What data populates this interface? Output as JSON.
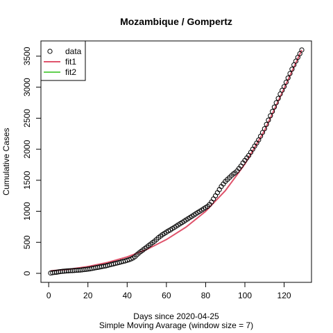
{
  "chart_data": {
    "type": "scatter",
    "title": "Mozambique / Gompertz",
    "xlabel": "Days since 2020-04-25",
    "ylabel": "Cumulative Cases",
    "subtitle": "Simple Moving Avarage (window size = 7)",
    "xlim": [
      1,
      129
    ],
    "ylim": [
      0,
      3600
    ],
    "x_ticks": [
      0,
      20,
      40,
      60,
      80,
      100,
      120
    ],
    "y_ticks": [
      0,
      500,
      1000,
      1500,
      2000,
      2500,
      3000,
      3500
    ],
    "legend": {
      "placement": "top-left",
      "entries": [
        {
          "label": "data",
          "symbol": "circle",
          "color": "#000000"
        },
        {
          "label": "fit1",
          "symbol": "line",
          "color": "#DF536B"
        },
        {
          "label": "fit2",
          "symbol": "line",
          "color": "#61D04F"
        }
      ]
    },
    "series": [
      {
        "name": "data",
        "kind": "points",
        "color": "#000000",
        "x": [
          1,
          2,
          3,
          4,
          5,
          6,
          7,
          8,
          9,
          10,
          11,
          12,
          13,
          14,
          15,
          16,
          17,
          18,
          19,
          20,
          21,
          22,
          23,
          24,
          25,
          26,
          27,
          28,
          29,
          30,
          31,
          32,
          33,
          34,
          35,
          36,
          37,
          38,
          39,
          40,
          41,
          42,
          43,
          44,
          45,
          46,
          47,
          48,
          49,
          50,
          51,
          52,
          53,
          54,
          55,
          56,
          57,
          58,
          59,
          60,
          61,
          62,
          63,
          64,
          65,
          66,
          67,
          68,
          69,
          70,
          71,
          72,
          73,
          74,
          75,
          76,
          77,
          78,
          79,
          80,
          81,
          82,
          83,
          84,
          85,
          86,
          87,
          88,
          89,
          90,
          91,
          92,
          93,
          94,
          95,
          96,
          97,
          98,
          99,
          100,
          101,
          102,
          103,
          104,
          105,
          106,
          107,
          108,
          109,
          110,
          111,
          112,
          113,
          114,
          115,
          116,
          117,
          118,
          119,
          120,
          121,
          122,
          123,
          124,
          125,
          126,
          127,
          128,
          129
        ],
        "y": [
          5,
          10,
          14,
          18,
          24,
          28,
          32,
          35,
          38,
          40,
          42,
          44,
          46,
          48,
          50,
          53,
          56,
          60,
          64,
          68,
          72,
          78,
          84,
          90,
          96,
          102,
          108,
          114,
          120,
          128,
          136,
          144,
          152,
          160,
          168,
          176,
          184,
          192,
          200,
          210,
          220,
          232,
          248,
          268,
          300,
          328,
          352,
          376,
          400,
          424,
          448,
          472,
          496,
          520,
          548,
          576,
          600,
          624,
          644,
          664,
          684,
          700,
          720,
          740,
          760,
          780,
          800,
          820,
          840,
          860,
          880,
          900,
          920,
          940,
          960,
          980,
          1000,
          1020,
          1040,
          1060,
          1080,
          1110,
          1150,
          1200,
          1250,
          1300,
          1350,
          1400,
          1440,
          1480,
          1510,
          1540,
          1570,
          1600,
          1620,
          1650,
          1690,
          1730,
          1780,
          1820,
          1860,
          1900,
          1950,
          2000,
          2050,
          2100,
          2150,
          2210,
          2270,
          2330,
          2400,
          2470,
          2540,
          2610,
          2680,
          2750,
          2820,
          2890,
          2950,
          3010,
          3080,
          3150,
          3220,
          3290,
          3360,
          3420,
          3480,
          3540,
          3600
        ]
      },
      {
        "name": "fit1",
        "kind": "line",
        "color": "#DF536B",
        "x": [
          1,
          10,
          20,
          30,
          40,
          50,
          60,
          70,
          80,
          90,
          100,
          110,
          120,
          129
        ],
        "y": [
          40,
          65,
          110,
          175,
          265,
          385,
          545,
          745,
          1000,
          1330,
          1760,
          2300,
          2980,
          3600
        ]
      },
      {
        "name": "fit2",
        "kind": "line",
        "color": "#61D04F",
        "x": [],
        "y": []
      }
    ]
  }
}
